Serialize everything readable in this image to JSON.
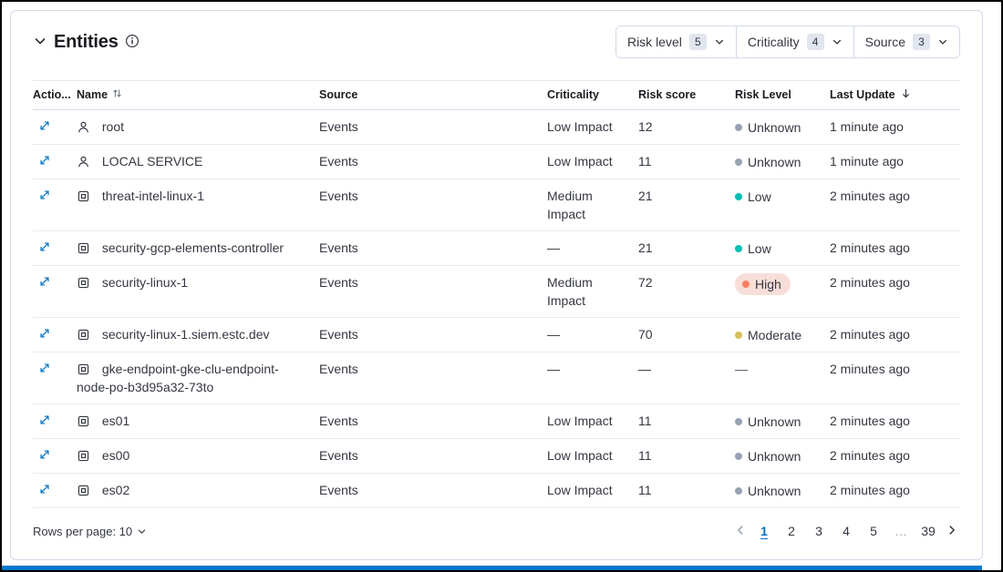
{
  "colors": {
    "accent_blue": "#0071c2",
    "border": "#d3dae6",
    "bottom_bar": "#0077cc"
  },
  "header": {
    "title": "Entities",
    "filters": [
      {
        "label": "Risk level",
        "count": "5"
      },
      {
        "label": "Criticality",
        "count": "4"
      },
      {
        "label": "Source",
        "count": "3"
      }
    ]
  },
  "table": {
    "columns": [
      "Actio...",
      "Name",
      "Source",
      "Criticality",
      "Risk score",
      "Risk Level",
      "Last Update"
    ],
    "empty_placeholder": "—",
    "risk_level_styles": {
      "Unknown": {
        "dot": "#98a2b3"
      },
      "Low": {
        "dot": "#00bfb3"
      },
      "Moderate": {
        "dot": "#d6bf57"
      },
      "High": {
        "dot": "#ff7e62",
        "bg": "#f8ded8"
      }
    },
    "rows": [
      {
        "entity_type": "user",
        "name": "root",
        "source": "Events",
        "criticality": "Low Impact",
        "risk_score": "12",
        "risk_level": "Unknown",
        "last_update": "1 minute ago"
      },
      {
        "entity_type": "user",
        "name": "LOCAL SERVICE",
        "source": "Events",
        "criticality": "Low Impact",
        "risk_score": "11",
        "risk_level": "Unknown",
        "last_update": "1 minute ago"
      },
      {
        "entity_type": "host",
        "name": "threat-intel-linux-1",
        "source": "Events",
        "criticality": "Medium Impact",
        "risk_score": "21",
        "risk_level": "Low",
        "last_update": "2 minutes ago"
      },
      {
        "entity_type": "host",
        "name": "security-gcp-elements-controller",
        "source": "Events",
        "criticality": null,
        "risk_score": "21",
        "risk_level": "Low",
        "last_update": "2 minutes ago"
      },
      {
        "entity_type": "host",
        "name": "security-linux-1",
        "source": "Events",
        "criticality": "Medium Impact",
        "risk_score": "72",
        "risk_level": "High",
        "last_update": "2 minutes ago"
      },
      {
        "entity_type": "host",
        "name": "security-linux-1.siem.estc.dev",
        "source": "Events",
        "criticality": null,
        "risk_score": "70",
        "risk_level": "Moderate",
        "last_update": "2 minutes ago"
      },
      {
        "entity_type": "host",
        "name": "gke-endpoint-gke-clu-endpoint-node-po-b3d95a32-73to",
        "source": "Events",
        "criticality": null,
        "risk_score": null,
        "risk_level": null,
        "last_update": "2 minutes ago"
      },
      {
        "entity_type": "host",
        "name": "es01",
        "source": "Events",
        "criticality": "Low Impact",
        "risk_score": "11",
        "risk_level": "Unknown",
        "last_update": "2 minutes ago"
      },
      {
        "entity_type": "host",
        "name": "es00",
        "source": "Events",
        "criticality": "Low Impact",
        "risk_score": "11",
        "risk_level": "Unknown",
        "last_update": "2 minutes ago"
      },
      {
        "entity_type": "host",
        "name": "es02",
        "source": "Events",
        "criticality": "Low Impact",
        "risk_score": "11",
        "risk_level": "Unknown",
        "last_update": "2 minutes ago"
      }
    ]
  },
  "footer": {
    "rows_per_page_label": "Rows per page: 10",
    "pagination": {
      "current": "1",
      "pages": [
        "1",
        "2",
        "3",
        "4",
        "5",
        "…",
        "39"
      ]
    }
  }
}
